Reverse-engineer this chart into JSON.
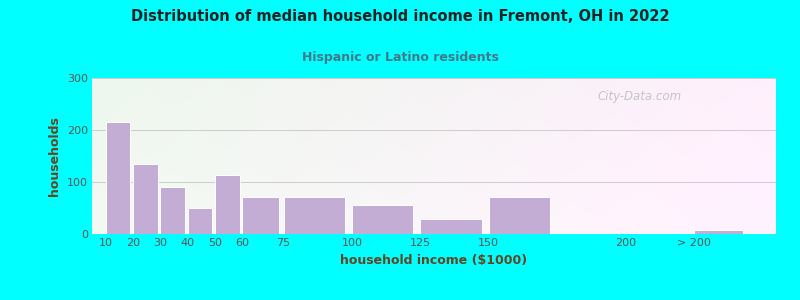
{
  "title": "Distribution of median household income in Fremont, OH in 2022",
  "subtitle": "Hispanic or Latino residents",
  "xlabel": "household income ($1000)",
  "ylabel": "households",
  "background_outer": "#00FFFF",
  "bar_color": "#C4ADD4",
  "bar_edgecolor": "#FFFFFF",
  "title_color": "#222222",
  "subtitle_color": "#447788",
  "axis_label_color": "#664422",
  "tick_label_color": "#555555",
  "categories": [
    "10",
    "20",
    "30",
    "40",
    "50",
    "60",
    "75",
    "100",
    "125",
    "150",
    "200",
    "> 200"
  ],
  "values": [
    215,
    135,
    90,
    50,
    113,
    72,
    72,
    55,
    28,
    72,
    0,
    8
  ],
  "bar_left_edges": [
    10,
    20,
    30,
    40,
    50,
    60,
    75,
    100,
    125,
    150,
    200,
    225
  ],
  "bar_widths": [
    10,
    10,
    10,
    10,
    10,
    15,
    25,
    25,
    25,
    25,
    5,
    20
  ],
  "xlim": [
    5,
    255
  ],
  "ylim": [
    0,
    300
  ],
  "yticks": [
    0,
    100,
    200,
    300
  ],
  "xtick_positions": [
    10,
    20,
    30,
    40,
    50,
    60,
    75,
    100,
    125,
    150,
    200,
    225
  ],
  "watermark": "City-Data.com"
}
